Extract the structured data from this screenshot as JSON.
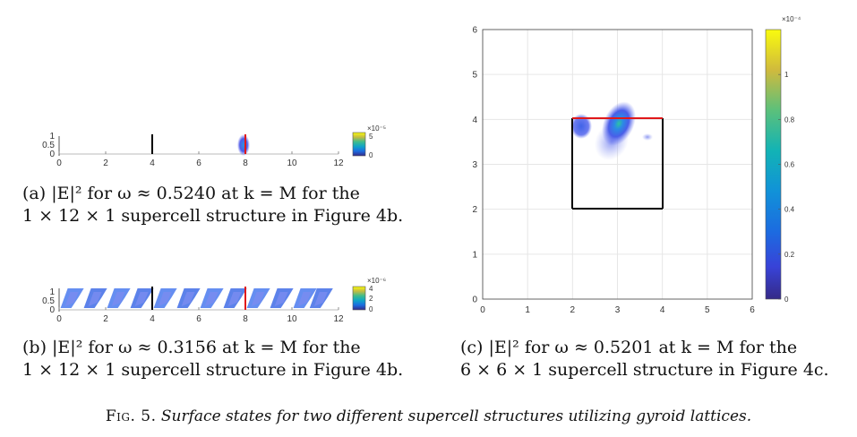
{
  "panel_a": {
    "caption_line1": "(a) |E|² for ω ≈ 0.5240 at k = M for the",
    "caption_line2": "1 × 12 × 1 supercell structure in Figure 4b.",
    "x_ticks": [
      "0",
      "2",
      "4",
      "6",
      "8",
      "10",
      "12"
    ],
    "y_ticks": [
      "1",
      "0.5",
      "0"
    ],
    "cb_exponent": "×10⁻⁵",
    "cb_ticks": [
      "5",
      "0"
    ]
  },
  "panel_b": {
    "caption_line1": "(b) |E|² for ω ≈ 0.3156 at k = M for the",
    "caption_line2": "1 × 12 × 1 supercell structure in Figure 4b.",
    "x_ticks": [
      "0",
      "2",
      "4",
      "6",
      "8",
      "10",
      "12"
    ],
    "y_ticks": [
      "1",
      "0.5",
      "0"
    ],
    "cb_exponent": "×10⁻⁶",
    "cb_ticks": [
      "4",
      "2",
      "0"
    ]
  },
  "panel_c": {
    "caption_line1": "(c) |E|² for ω ≈ 0.5201 at k = M for the",
    "caption_line2": "6 × 6 × 1 supercell structure in Figure 4c.",
    "x_ticks": [
      "0",
      "1",
      "2",
      "3",
      "4",
      "5",
      "6"
    ],
    "y_ticks": [
      "0",
      "1",
      "2",
      "3",
      "4",
      "5",
      "6"
    ],
    "cb_exponent": "×10⁻⁴",
    "cb_ticks": [
      "0",
      "0.2",
      "0.4",
      "0.6",
      "0.8",
      "1"
    ]
  },
  "figure_caption": {
    "label": "Fig. 5.",
    "text": "Surface states for two different supercell structures utilizing gyroid lattices."
  },
  "chart_data": [
    {
      "type": "heatmap",
      "title": "",
      "xlim": [
        0,
        12
      ],
      "ylim": [
        0,
        1
      ],
      "colorbar": {
        "min": 0,
        "max": 5e-05
      },
      "unit_cell_lines": [
        {
          "x": 4,
          "color": "black"
        },
        {
          "x": 8,
          "color": "red"
        }
      ],
      "hotspots": [
        {
          "x": 8,
          "y": 0.5,
          "rel_intensity": 0.4
        }
      ]
    },
    {
      "type": "heatmap",
      "title": "",
      "xlim": [
        0,
        12
      ],
      "ylim": [
        0,
        1
      ],
      "colorbar": {
        "min": 0,
        "max": 4e-06
      },
      "unit_cell_lines": [
        {
          "x": 4,
          "color": "black"
        },
        {
          "x": 8,
          "color": "red"
        }
      ],
      "hotspots": [
        {
          "x": 0.6,
          "y": 0.5
        },
        {
          "x": 1.6,
          "y": 0.5
        },
        {
          "x": 2.6,
          "y": 0.5
        },
        {
          "x": 3.6,
          "y": 0.5
        },
        {
          "x": 4.6,
          "y": 0.5
        },
        {
          "x": 5.6,
          "y": 0.5
        },
        {
          "x": 6.6,
          "y": 0.5
        },
        {
          "x": 7.6,
          "y": 0.5
        },
        {
          "x": 8.6,
          "y": 0.5
        },
        {
          "x": 9.6,
          "y": 0.5
        },
        {
          "x": 10.6,
          "y": 0.5
        },
        {
          "x": 11.3,
          "y": 0.5
        }
      ]
    },
    {
      "type": "heatmap",
      "title": "",
      "xlim": [
        0,
        6
      ],
      "ylim": [
        0,
        6
      ],
      "grid": true,
      "colorbar": {
        "min": 0,
        "max": 0.00012
      },
      "unit_cell_box": {
        "x": [
          2,
          4
        ],
        "y": [
          2,
          4
        ],
        "top_edge_color": "red",
        "other_edges_color": "black"
      },
      "hotspots": [
        {
          "x": 3.05,
          "y": 3.9,
          "rel_intensity": 0.75
        },
        {
          "x": 2.15,
          "y": 3.8,
          "rel_intensity": 0.3
        },
        {
          "x": 3.3,
          "y": 3.5,
          "rel_intensity": 0.1
        }
      ]
    }
  ]
}
